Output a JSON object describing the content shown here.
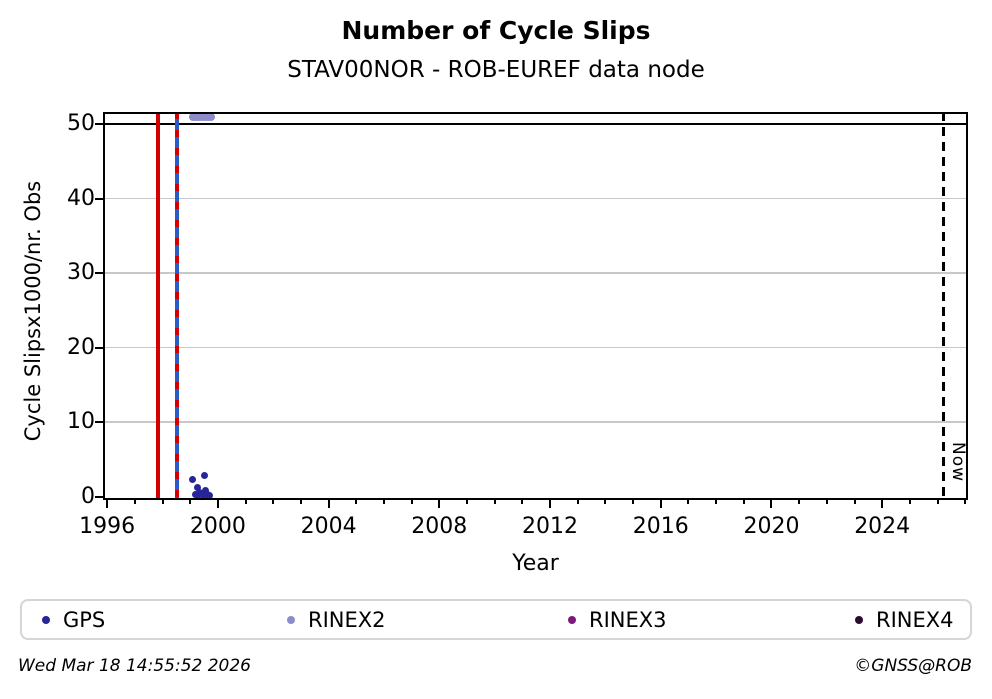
{
  "title": "Number of Cycle Slips",
  "subtitle": "STAV00NOR - ROB-EUREF data node",
  "footer": {
    "timestamp": "Wed Mar 18 14:55:52 2026",
    "credit": "©GNSS@ROB"
  },
  "chart_data": {
    "type": "scatter",
    "title": "Number of Cycle Slips",
    "subtitle": "STAV00NOR - ROB-EUREF data node",
    "xlabel": "Year",
    "ylabel": "Cycle Slipsx1000/nr. Obs",
    "xlim": [
      1995.85,
      2027.1
    ],
    "ylim": [
      -0.4,
      51.6
    ],
    "xticks_major": [
      1996,
      2000,
      2004,
      2008,
      2012,
      2016,
      2020,
      2024
    ],
    "xticks_minor_every_year": true,
    "yticks": [
      0,
      10,
      20,
      30,
      40,
      50
    ],
    "grid_y": [
      10,
      20,
      30,
      40
    ],
    "grid_color": "#c8c8c8",
    "refline_y": 50,
    "legend_position": "bottom",
    "vlines": [
      {
        "name": "red-event",
        "x": 1997.83,
        "color": "#d40000",
        "style": "solid"
      },
      {
        "name": "blue-event",
        "x": 1998.52,
        "color": "#2b5bc7",
        "style": "solid",
        "overlay": "red-dashed"
      },
      {
        "name": "now",
        "x": 2026.24,
        "color": "#000000",
        "style": "dashed",
        "label": "Now"
      }
    ],
    "series": [
      {
        "name": "GPS",
        "color": "#26269a",
        "marker_px": 7,
        "points": [
          [
            1999.07,
            2.3
          ],
          [
            1999.5,
            2.95
          ],
          [
            1999.25,
            1.3
          ],
          [
            1999.18,
            0.35
          ],
          [
            1999.27,
            0.2
          ],
          [
            1999.35,
            0.65
          ],
          [
            1999.42,
            0.3
          ],
          [
            1999.5,
            0.12
          ],
          [
            1999.57,
            0.85
          ],
          [
            1999.62,
            0.3
          ],
          [
            1999.68,
            0.2
          ]
        ]
      },
      {
        "name": "RINEX2",
        "color": "#8c8cc8",
        "marker_px": 8,
        "points": [
          [
            1999.1,
            50.95
          ],
          [
            1999.21,
            50.95
          ],
          [
            1999.32,
            50.95
          ],
          [
            1999.43,
            50.95
          ],
          [
            1999.54,
            50.95
          ],
          [
            1999.64,
            50.95
          ],
          [
            1999.74,
            50.95
          ]
        ]
      },
      {
        "name": "RINEX3",
        "color": "#7c1a7c",
        "marker_px": 7,
        "points": []
      },
      {
        "name": "RINEX4",
        "color": "#2c0b30",
        "marker_px": 7,
        "points": []
      }
    ]
  }
}
